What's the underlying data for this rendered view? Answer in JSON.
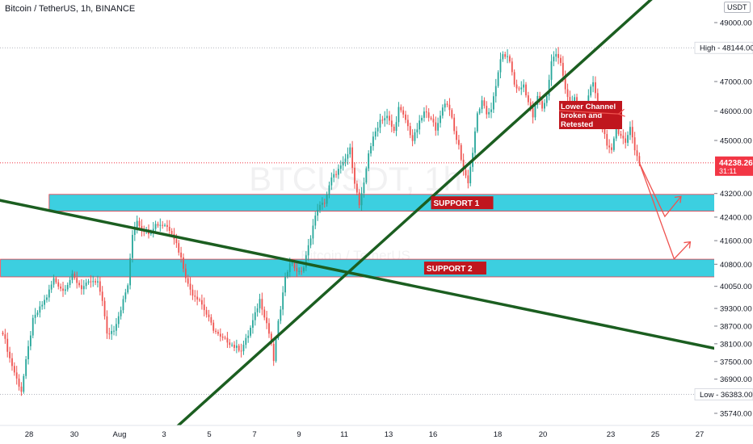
{
  "header": {
    "symbol_title": "Bitcoin / TetherUS, 1h, BINANCE",
    "currency": "USDT"
  },
  "watermark": "BTCUSDT, 1h",
  "watermark_sub": "Bitcoin / TetherUS",
  "colors": {
    "bullish": "#26a69a",
    "bearish": "#ef5350",
    "trendline": "#1b5e20",
    "support_fill": "#3ccfe0",
    "label_red": "#c0161e",
    "price_line": "#f23645",
    "grid_dash": "#b2b5be"
  },
  "chart_data": {
    "type": "candlestick",
    "symbol": "Bitcoin / TetherUS",
    "interval": "1h",
    "exchange": "BINANCE",
    "y_ticks": [
      49000,
      48144,
      47000,
      46000,
      45000,
      44238.26,
      43200,
      42400,
      41600,
      40800,
      40050,
      39300,
      38700,
      38100,
      37500,
      36900,
      36383,
      35740
    ],
    "y_tick_labels": [
      "49000.00",
      "47000.00",
      "46000.00",
      "45000.00",
      "43200.00",
      "42400.00",
      "41600.00",
      "40800.00",
      "40050.00",
      "39300.00",
      "38700.00",
      "38100.00",
      "37500.00",
      "36900.00",
      "35740.00"
    ],
    "x_ticks": [
      "28",
      "30",
      "Aug",
      "3",
      "5",
      "7",
      "9",
      "11",
      "13",
      "16",
      "18",
      "20",
      "23",
      "25",
      "27"
    ],
    "high": {
      "label": "High",
      "value": "48144.00"
    },
    "low": {
      "label": "Low",
      "value": "36383.00"
    },
    "last_price": {
      "value": "44238.26",
      "countdown": "31:11"
    },
    "price_anchors": [
      [
        0,
        38500
      ],
      [
        3,
        37600
      ],
      [
        6,
        36900
      ],
      [
        8,
        36500
      ],
      [
        10,
        37500
      ],
      [
        13,
        38900
      ],
      [
        16,
        39300
      ],
      [
        19,
        39700
      ],
      [
        22,
        40300
      ],
      [
        26,
        39900
      ],
      [
        30,
        40400
      ],
      [
        34,
        40000
      ],
      [
        38,
        40200
      ],
      [
        41,
        40150
      ],
      [
        43,
        39600
      ],
      [
        45,
        38400
      ],
      [
        48,
        38600
      ],
      [
        51,
        39300
      ],
      [
        54,
        40100
      ],
      [
        56,
        41800
      ],
      [
        58,
        42300
      ],
      [
        60,
        42000
      ],
      [
        63,
        41900
      ],
      [
        66,
        42150
      ],
      [
        70,
        42150
      ],
      [
        73,
        41900
      ],
      [
        75,
        41500
      ],
      [
        77,
        41000
      ],
      [
        80,
        40100
      ],
      [
        82,
        39800
      ],
      [
        85,
        39600
      ],
      [
        88,
        39100
      ],
      [
        91,
        38600
      ],
      [
        94,
        38300
      ],
      [
        97,
        38200
      ],
      [
        100,
        38000
      ],
      [
        103,
        37900
      ],
      [
        106,
        38400
      ],
      [
        109,
        39100
      ],
      [
        111,
        39600
      ],
      [
        114,
        38800
      ],
      [
        116,
        38100
      ],
      [
        117,
        37450
      ],
      [
        118,
        38300
      ],
      [
        120,
        39300
      ],
      [
        122,
        40300
      ],
      [
        124,
        40900
      ],
      [
        126,
        40700
      ],
      [
        128,
        40500
      ],
      [
        130,
        40700
      ],
      [
        132,
        41400
      ],
      [
        134,
        42100
      ],
      [
        136,
        42700
      ],
      [
        139,
        42900
      ],
      [
        142,
        43700
      ],
      [
        144,
        43900
      ],
      [
        147,
        44200
      ],
      [
        150,
        44700
      ],
      [
        152,
        43600
      ],
      [
        154,
        42800
      ],
      [
        156,
        43500
      ],
      [
        158,
        44600
      ],
      [
        161,
        45300
      ],
      [
        163,
        45700
      ],
      [
        166,
        45800
      ],
      [
        169,
        45300
      ],
      [
        171,
        46100
      ],
      [
        174,
        45700
      ],
      [
        177,
        45000
      ],
      [
        180,
        45600
      ],
      [
        182,
        45950
      ],
      [
        185,
        45800
      ],
      [
        187,
        45300
      ],
      [
        189,
        45900
      ],
      [
        191,
        46300
      ],
      [
        193,
        46100
      ],
      [
        195,
        45300
      ],
      [
        197,
        44800
      ],
      [
        199,
        44000
      ],
      [
        201,
        43600
      ],
      [
        203,
        44600
      ],
      [
        205,
        45900
      ],
      [
        207,
        46300
      ],
      [
        209,
        45900
      ],
      [
        211,
        46100
      ],
      [
        213,
        46800
      ],
      [
        215,
        47800
      ],
      [
        217,
        47900
      ],
      [
        219,
        47700
      ],
      [
        221,
        46900
      ],
      [
        223,
        46700
      ],
      [
        225,
        46900
      ],
      [
        227,
        46300
      ],
      [
        229,
        45800
      ],
      [
        231,
        46500
      ],
      [
        233,
        46100
      ],
      [
        235,
        46500
      ],
      [
        237,
        47700
      ],
      [
        239,
        47950
      ],
      [
        241,
        47600
      ],
      [
        243,
        46800
      ],
      [
        245,
        46200
      ],
      [
        247,
        46400
      ],
      [
        249,
        46100
      ],
      [
        251,
        45800
      ],
      [
        253,
        46600
      ],
      [
        255,
        46900
      ],
      [
        257,
        46200
      ],
      [
        259,
        45500
      ],
      [
        261,
        44900
      ],
      [
        263,
        44600
      ],
      [
        265,
        45400
      ],
      [
        267,
        45200
      ],
      [
        269,
        44900
      ],
      [
        271,
        45500
      ],
      [
        273,
        44700
      ],
      [
        275,
        44238
      ]
    ],
    "trendlines": [
      {
        "name": "lower-channel",
        "from": [
          -21,
          43290
        ],
        "to": [
          313,
          37855
        ]
      },
      {
        "name": "ascending",
        "from": [
          73,
          35130
        ],
        "to": [
          293,
          50700
        ]
      }
    ],
    "support_zones": [
      {
        "label": "SUPPORT 1",
        "from": 20,
        "to": 313,
        "low": 42600,
        "high": 43170
      },
      {
        "label": "SUPPORT 2",
        "from": -1,
        "to": 315,
        "low": 40370,
        "high": 40970
      }
    ],
    "projection_arrows": [
      {
        "points": [
          [
            275,
            44238
          ],
          [
            286,
            42420
          ],
          [
            293,
            43100
          ]
        ]
      },
      {
        "points": [
          [
            275,
            44238
          ],
          [
            290,
            40980
          ],
          [
            297,
            41560
          ]
        ]
      }
    ],
    "annotation": {
      "lines": [
        "Lower Channel",
        "broken and",
        "Retested"
      ],
      "pointer_to": [
        266,
        45900
      ]
    }
  }
}
